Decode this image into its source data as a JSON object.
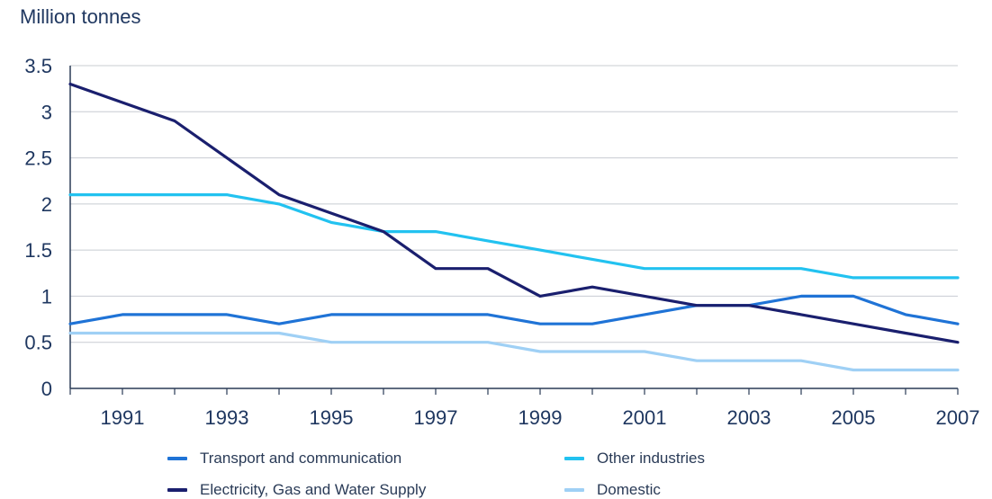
{
  "chart_data": {
    "type": "line",
    "title": "",
    "ylabel": "Million tonnes",
    "xlabel": "",
    "x": [
      1990,
      1991,
      1992,
      1993,
      1994,
      1995,
      1996,
      1997,
      1998,
      1999,
      2000,
      2001,
      2002,
      2003,
      2004,
      2005,
      2006,
      2007
    ],
    "xticks": [
      "1991",
      "1993",
      "1995",
      "1997",
      "1999",
      "2001",
      "2003",
      "2005",
      "2007"
    ],
    "xtick_values": [
      1991,
      1993,
      1995,
      1997,
      1999,
      2001,
      2003,
      2005,
      2007
    ],
    "yticks": [
      "0",
      "0.5",
      "1",
      "1.5",
      "2",
      "2.5",
      "3",
      "3.5"
    ],
    "ytick_values": [
      0,
      0.5,
      1,
      1.5,
      2,
      2.5,
      3,
      3.5
    ],
    "xlim": [
      1990,
      2007
    ],
    "ylim": [
      0,
      3.5
    ],
    "grid": "horizontal",
    "legend_position": "bottom",
    "series": [
      {
        "name": "Transport and communication",
        "color": "#1f73d6",
        "values": [
          0.7,
          0.8,
          0.8,
          0.8,
          0.7,
          0.8,
          0.8,
          0.8,
          0.8,
          0.7,
          0.7,
          0.8,
          0.9,
          0.9,
          1.0,
          1.0,
          0.8,
          0.7
        ]
      },
      {
        "name": "Other industries",
        "color": "#22c2f0",
        "values": [
          2.1,
          2.1,
          2.1,
          2.1,
          2.0,
          1.8,
          1.7,
          1.7,
          1.6,
          1.5,
          1.4,
          1.3,
          1.3,
          1.3,
          1.3,
          1.2,
          1.2,
          1.2
        ]
      },
      {
        "name": "Electricity, Gas and Water Supply",
        "color": "#1a1f6e",
        "values": [
          3.3,
          3.1,
          2.9,
          2.5,
          2.1,
          1.9,
          1.7,
          1.3,
          1.3,
          1.0,
          1.1,
          1.0,
          0.9,
          0.9,
          0.8,
          0.7,
          0.6,
          0.5
        ]
      },
      {
        "name": "Domestic",
        "color": "#9fd0f5",
        "values": [
          0.6,
          0.6,
          0.6,
          0.6,
          0.6,
          0.5,
          0.5,
          0.5,
          0.5,
          0.4,
          0.4,
          0.4,
          0.3,
          0.3,
          0.3,
          0.2,
          0.2,
          0.2
        ]
      }
    ]
  }
}
